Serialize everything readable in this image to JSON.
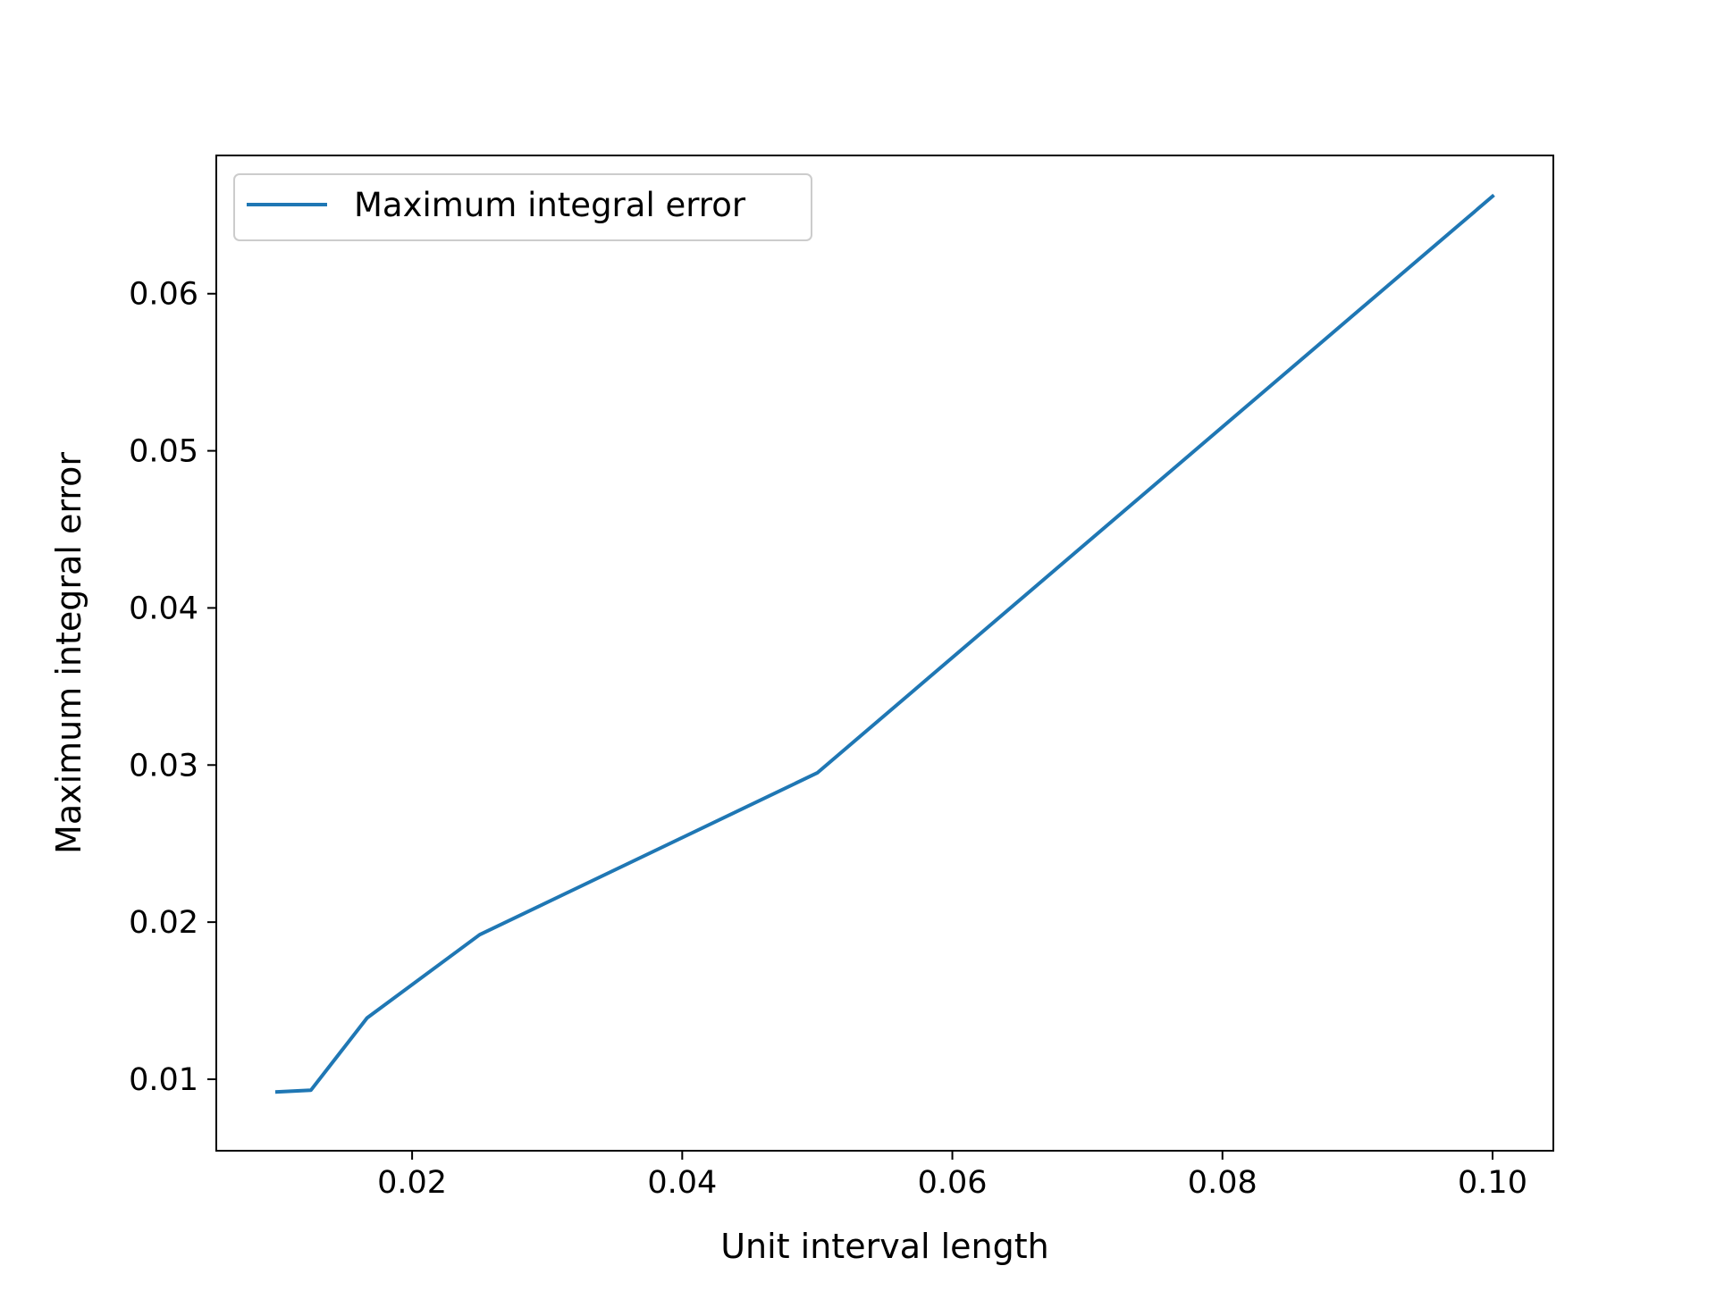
{
  "chart_data": {
    "type": "line",
    "title": "",
    "xlabel": "Unit interval length",
    "ylabel": "Maximum integral error",
    "xlim": [
      0.0055,
      0.1045
    ],
    "ylim": [
      0.00545,
      0.0688
    ],
    "xticks": [
      0.02,
      0.04,
      0.06,
      0.08,
      0.1
    ],
    "xtick_labels": [
      "0.02",
      "0.04",
      "0.06",
      "0.08",
      "0.10"
    ],
    "yticks": [
      0.01,
      0.02,
      0.03,
      0.04,
      0.05,
      0.06
    ],
    "ytick_labels": [
      "0.01",
      "0.02",
      "0.03",
      "0.04",
      "0.05",
      "0.06"
    ],
    "grid": false,
    "legend": {
      "position": "top-left"
    },
    "series": [
      {
        "name": "Maximum integral error",
        "color": "#1f77b4",
        "x": [
          0.01,
          0.0125,
          0.016667,
          0.025,
          0.05,
          0.1
        ],
        "y": [
          0.0092,
          0.0093,
          0.0139,
          0.0192,
          0.0295,
          0.0662
        ]
      }
    ]
  }
}
